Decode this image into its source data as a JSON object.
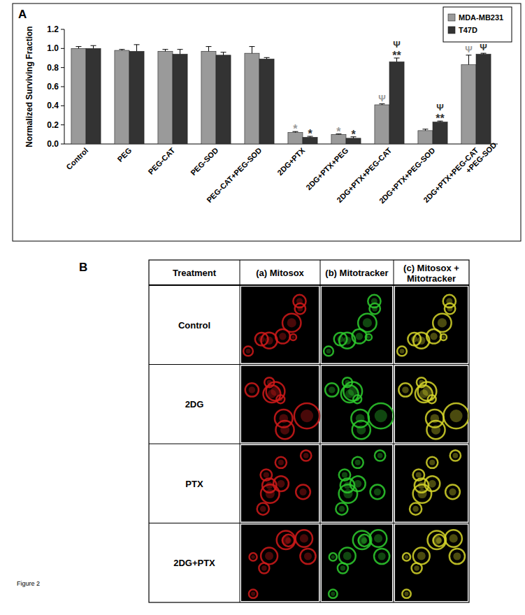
{
  "figure_label": "Figure 2",
  "panel_labels": {
    "a": "A",
    "b": "B"
  },
  "chart_data": {
    "type": "bar",
    "y_label": "Normalized Surviving Fraction",
    "categories": [
      "Control",
      "PEG",
      "PEG-CAT",
      "PEG-SOD",
      "PEG-CAT+PEG-SOD",
      "2DG+PTX",
      "2DG+PTX+PEG",
      "2DG+PTX+PEG-CAT",
      "2DG+PTX+PEG-SOD",
      "2DG+PTX+PEG-CAT +PEG-SOD"
    ],
    "series": [
      {
        "name": "MDA-MB231",
        "color": "#9a9a9a",
        "values": [
          1.0,
          0.98,
          0.97,
          0.97,
          0.95,
          0.12,
          0.1,
          0.41,
          0.14,
          0.83
        ],
        "errors": [
          0.02,
          0.01,
          0.02,
          0.05,
          0.07,
          0.01,
          0.005,
          0.01,
          0.015,
          0.1
        ],
        "annotations": [
          null,
          null,
          null,
          null,
          null,
          [
            "*"
          ],
          [
            "*"
          ],
          [
            "Ψ"
          ],
          null,
          [
            "Ψ"
          ]
        ]
      },
      {
        "name": "T47D",
        "color": "#333333",
        "values": [
          1.0,
          0.97,
          0.94,
          0.93,
          0.89,
          0.07,
          0.06,
          0.86,
          0.23,
          0.94
        ],
        "errors": [
          0.03,
          0.07,
          0.05,
          0.03,
          0.015,
          0.01,
          0.015,
          0.04,
          0.01,
          0.01
        ],
        "annotations": [
          null,
          null,
          null,
          null,
          null,
          [
            "*"
          ],
          [
            "*"
          ],
          [
            "Ψ",
            "**"
          ],
          [
            "Ψ",
            "**"
          ],
          [
            "Ψ"
          ]
        ]
      }
    ],
    "ylim": [
      0,
      1.2
    ],
    "yticks": [
      {
        "value": 0,
        "label": "0.0"
      },
      0.2,
      0.4,
      0.6,
      0.8,
      {
        "value": 1,
        "label": "1.0"
      },
      1.2
    ],
    "legend": "upper right",
    "grid": false
  },
  "image_panel": {
    "header": [
      "Treatment",
      "(a) Mitosox",
      "(b) Mitotracker",
      "(c) Mitosox + Mitotracker"
    ],
    "treatments": [
      "Control",
      "2DG",
      "PTX",
      "2DG+PTX"
    ]
  }
}
